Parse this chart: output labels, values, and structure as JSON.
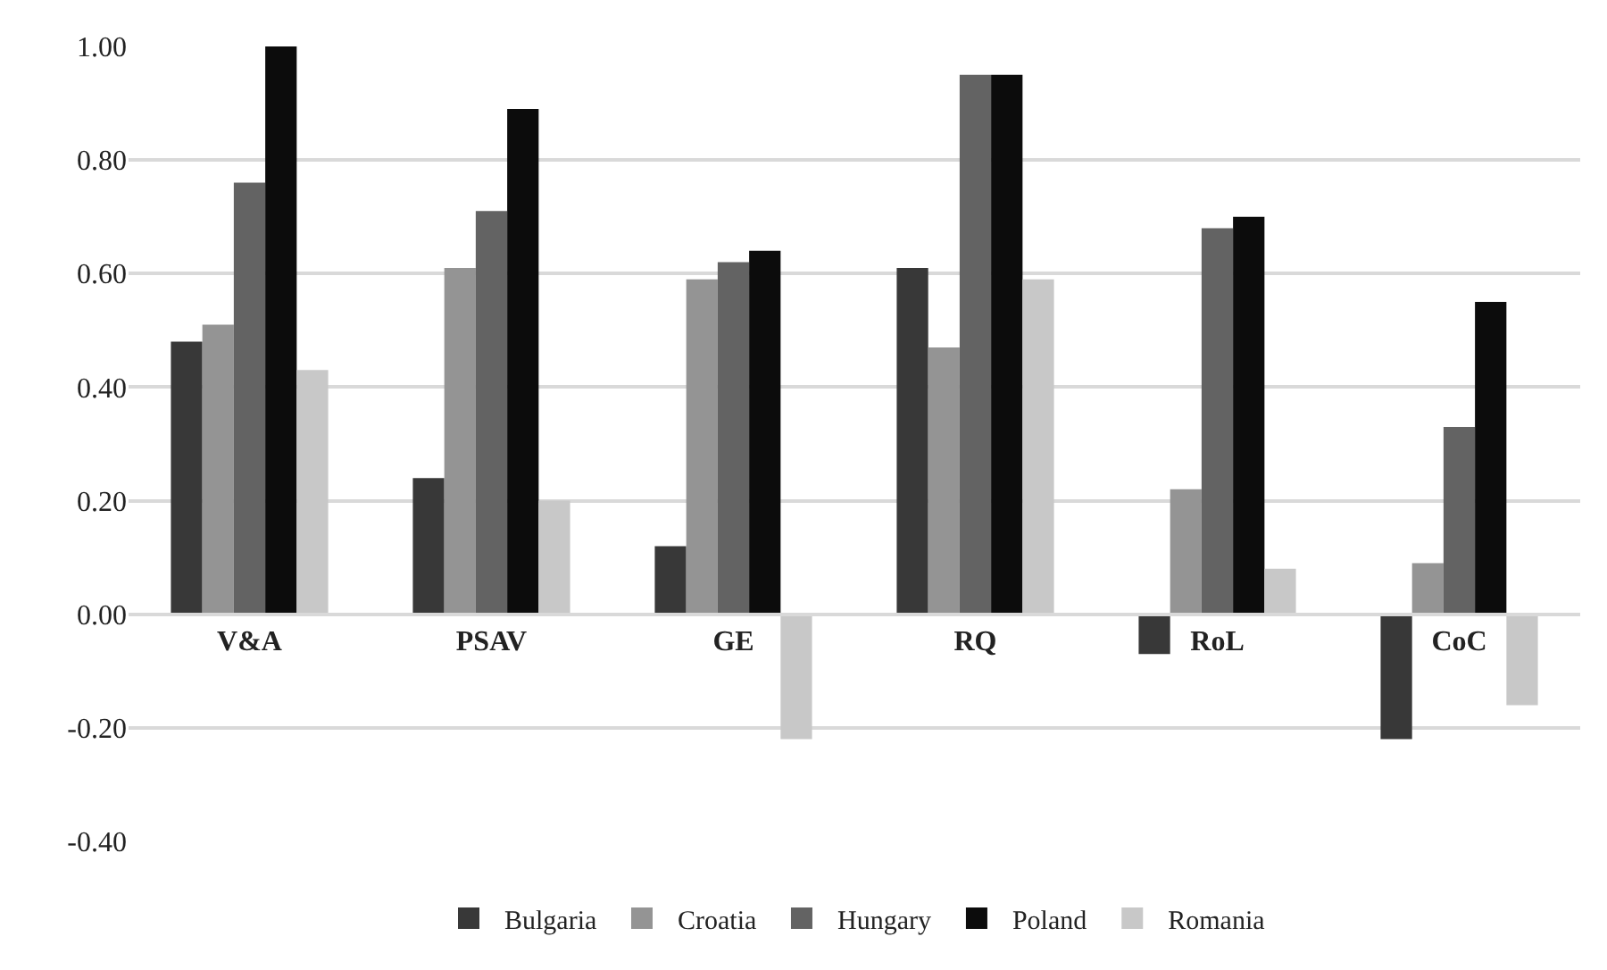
{
  "chart_data": {
    "type": "bar",
    "categories": [
      "V&A",
      "PSAV",
      "GE",
      "RQ",
      "RoL",
      "CoC"
    ],
    "series": [
      {
        "name": "Bulgaria",
        "color": "#383838",
        "values": [
          0.48,
          0.24,
          0.12,
          0.61,
          -0.07,
          -0.22
        ]
      },
      {
        "name": "Croatia",
        "color": "#949494",
        "values": [
          0.51,
          0.61,
          0.59,
          0.47,
          0.22,
          0.09
        ]
      },
      {
        "name": "Hungary",
        "color": "#636363",
        "values": [
          0.76,
          0.71,
          0.62,
          0.95,
          0.68,
          0.33
        ]
      },
      {
        "name": "Poland",
        "color": "#0c0c0c",
        "values": [
          1.0,
          0.89,
          0.64,
          0.95,
          0.7,
          0.55
        ]
      },
      {
        "name": "Romania",
        "color": "#c8c8c8",
        "values": [
          0.43,
          0.2,
          -0.22,
          0.59,
          0.08,
          -0.16
        ]
      }
    ],
    "ylim": [
      -0.4,
      1.0
    ],
    "yticks": [
      {
        "value": -0.4,
        "label": "-0.40"
      },
      {
        "value": -0.2,
        "label": "-0.20"
      },
      {
        "value": 0,
        "label": "0.00"
      },
      {
        "value": 0.2,
        "label": "0.20"
      },
      {
        "value": 0.4,
        "label": "0.40"
      },
      {
        "value": 0.6,
        "label": "0.60"
      },
      {
        "value": 0.8,
        "label": "0.80"
      },
      {
        "value": 1.0,
        "label": "1.00"
      }
    ],
    "grid": "y",
    "legend": "bottom"
  }
}
